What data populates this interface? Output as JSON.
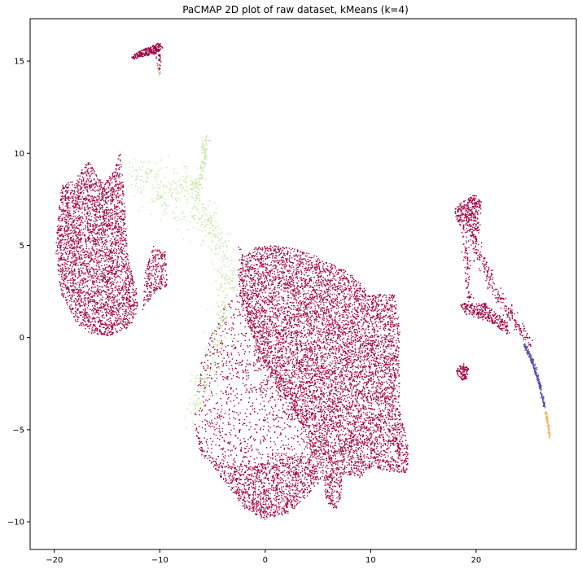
{
  "chart_data": {
    "type": "scatter",
    "title": "PaCMAP 2D plot of raw dataset, kMeans (k=4)",
    "xlabel": "",
    "ylabel": "",
    "xlim": [
      -22.3,
      29.5
    ],
    "ylim": [
      -11.5,
      17.3
    ],
    "x_ticks": [
      -20,
      -10,
      0,
      10,
      20
    ],
    "y_ticks": [
      -10,
      -5,
      0,
      5,
      10,
      15
    ],
    "grid": false,
    "legend": "none",
    "clusters": [
      {
        "color": "#9e0142",
        "role": "main"
      },
      {
        "color": "#c1e6a0",
        "role": "bridge"
      },
      {
        "color": "#5e4fa2",
        "role": "tail"
      },
      {
        "color": "#f9b35c",
        "role": "tail-end"
      }
    ],
    "regions": [
      {
        "cluster": 0,
        "shape": "poly",
        "count": 3200,
        "pts": [
          [
            -19.6,
            6.8
          ],
          [
            -19.3,
            8.3
          ],
          [
            -18.0,
            8.6
          ],
          [
            -16.8,
            9.6
          ],
          [
            -15.3,
            8.3
          ],
          [
            -14.2,
            9.2
          ],
          [
            -13.8,
            10.2
          ],
          [
            -13.4,
            8.0
          ],
          [
            -13.0,
            4.2
          ],
          [
            -12.2,
            2.6
          ],
          [
            -12.0,
            1.3
          ],
          [
            -13.0,
            0.5
          ],
          [
            -14.8,
            0.1
          ],
          [
            -16.5,
            0.2
          ],
          [
            -17.8,
            0.7
          ],
          [
            -19.3,
            2.3
          ],
          [
            -19.9,
            4.5
          ]
        ]
      },
      {
        "cluster": 0,
        "shape": "poly",
        "count": 250,
        "pts": [
          [
            -11.4,
            3.6
          ],
          [
            -10.6,
            5.0
          ],
          [
            -9.4,
            4.6
          ],
          [
            -9.3,
            2.8
          ],
          [
            -10.4,
            2.5
          ],
          [
            -11.6,
            1.5
          ]
        ]
      },
      {
        "cluster": 0,
        "shape": "poly",
        "count": 240,
        "pts": [
          [
            -12.7,
            15.2
          ],
          [
            -12.2,
            15.5
          ],
          [
            -10.0,
            16.0
          ],
          [
            -9.7,
            15.7
          ],
          [
            -10.4,
            15.4
          ],
          [
            -12.5,
            15.1
          ]
        ]
      },
      {
        "cluster": 0,
        "shape": "poly",
        "count": 30,
        "pts": [
          [
            -10.4,
            15.3
          ],
          [
            -9.8,
            15.4
          ],
          [
            -10.0,
            14.2
          ],
          [
            -10.4,
            14.8
          ]
        ]
      },
      {
        "cluster": 0,
        "shape": "poly",
        "count": 8500,
        "pts": [
          [
            -6.8,
            -4.3
          ],
          [
            -5.7,
            -6.3
          ],
          [
            -4.6,
            -7.3
          ],
          [
            -3.2,
            -8.3
          ],
          [
            -2.0,
            -9.3
          ],
          [
            0.0,
            -9.9
          ],
          [
            2.2,
            -9.6
          ],
          [
            4.5,
            -8.3
          ],
          [
            5.5,
            -7.6
          ],
          [
            5.8,
            -8.9
          ],
          [
            6.7,
            -9.4
          ],
          [
            7.3,
            -8.4
          ],
          [
            7.4,
            -7.4
          ],
          [
            9.0,
            -7.6
          ],
          [
            10.2,
            -7.0
          ],
          [
            11.6,
            -7.3
          ],
          [
            13.5,
            -7.4
          ],
          [
            13.6,
            -6.0
          ],
          [
            12.8,
            -4.0
          ],
          [
            12.7,
            -1.3
          ],
          [
            12.8,
            0.3
          ],
          [
            12.4,
            2.3
          ],
          [
            10.0,
            2.4
          ],
          [
            8.5,
            3.3
          ],
          [
            6.5,
            4.0
          ],
          [
            4.5,
            4.5
          ],
          [
            3.0,
            4.8
          ],
          [
            1.0,
            5.0
          ],
          [
            -1.0,
            4.9
          ],
          [
            -2.3,
            4.2
          ],
          [
            -2.6,
            3.0
          ],
          [
            -1.5,
            0.5
          ],
          [
            0.2,
            -1.8
          ],
          [
            1.5,
            -3.0
          ],
          [
            3.0,
            -4.3
          ],
          [
            4.0,
            -5.5
          ],
          [
            3.5,
            -6.2
          ],
          [
            2.0,
            -6.5
          ],
          [
            0.0,
            -6.8
          ],
          [
            -3.0,
            -7.0
          ],
          [
            -6.0,
            -6.5
          ],
          [
            -6.5,
            -5.5
          ]
        ]
      },
      {
        "cluster": 0,
        "shape": "poly",
        "count": 900,
        "pts": [
          [
            -6.8,
            -4.3
          ],
          [
            -6.0,
            -1.0
          ],
          [
            -4.0,
            1.5
          ],
          [
            -2.5,
            3.0
          ],
          [
            -1.0,
            1.0
          ],
          [
            1.0,
            -1.5
          ],
          [
            3.0,
            -3.5
          ],
          [
            4.0,
            -5.5
          ],
          [
            2.5,
            -6.5
          ],
          [
            0.0,
            -6.8
          ],
          [
            -3.0,
            -7.0
          ],
          [
            -6.0,
            -6.5
          ]
        ]
      },
      {
        "cluster": 0,
        "shape": "poly",
        "count": 350,
        "pts": [
          [
            17.8,
            7.2
          ],
          [
            18.5,
            7.3
          ],
          [
            19.8,
            7.8
          ],
          [
            20.5,
            7.5
          ],
          [
            20.4,
            6.0
          ],
          [
            20.0,
            5.2
          ],
          [
            19.2,
            5.6
          ],
          [
            18.2,
            6.3
          ]
        ]
      },
      {
        "cluster": 0,
        "shape": "poly",
        "count": 300,
        "pts": [
          [
            18.4,
            1.9
          ],
          [
            19.6,
            1.8
          ],
          [
            20.8,
            1.9
          ],
          [
            22.0,
            1.3
          ],
          [
            23.0,
            0.8
          ],
          [
            23.2,
            0.0
          ],
          [
            21.8,
            0.7
          ],
          [
            20.5,
            1.0
          ],
          [
            19.0,
            1.2
          ]
        ]
      },
      {
        "cluster": 0,
        "shape": "poly",
        "count": 110,
        "pts": [
          [
            18.2,
            -1.6
          ],
          [
            18.8,
            -1.4
          ],
          [
            19.3,
            -1.7
          ],
          [
            19.1,
            -2.3
          ],
          [
            18.5,
            -2.3
          ],
          [
            18.1,
            -1.9
          ]
        ]
      },
      {
        "cluster": 0,
        "shape": "line",
        "count": 240,
        "pts": [
          [
            19.8,
            5.2
          ],
          [
            21.0,
            3.5
          ],
          [
            22.3,
            2.0
          ],
          [
            24.0,
            0.6
          ],
          [
            25.0,
            -0.3
          ]
        ],
        "spread": 0.22
      },
      {
        "cluster": 0,
        "shape": "line",
        "count": 80,
        "pts": [
          [
            19.0,
            5.5
          ],
          [
            19.2,
            3.5
          ],
          [
            19.4,
            1.9
          ]
        ],
        "spread": 0.15
      },
      {
        "cluster": 0,
        "shape": "line",
        "count": 100,
        "pts": [
          [
            -2.5,
            4.9
          ],
          [
            -2.0,
            2.0
          ],
          [
            -0.8,
            -0.8
          ],
          [
            1.5,
            -3.0
          ],
          [
            3.5,
            -5.0
          ]
        ],
        "spread": 0.25
      },
      {
        "cluster": 1,
        "shape": "line",
        "count": 600,
        "pts": [
          [
            -12.6,
            9.0
          ],
          [
            -11.0,
            8.4
          ],
          [
            -9.5,
            8.1
          ],
          [
            -8.0,
            8.0
          ],
          [
            -7.2,
            8.2
          ],
          [
            -6.5,
            7.8
          ],
          [
            -5.3,
            6.0
          ],
          [
            -4.0,
            4.8
          ],
          [
            -3.5,
            3.0
          ],
          [
            -4.0,
            1.0
          ],
          [
            -5.0,
            -1.0
          ],
          [
            -6.0,
            -2.5
          ],
          [
            -6.8,
            -4.3
          ]
        ],
        "spread": 0.55
      },
      {
        "cluster": 1,
        "shape": "line",
        "count": 120,
        "pts": [
          [
            -5.6,
            11.0
          ],
          [
            -5.8,
            9.5
          ],
          [
            -6.2,
            8.5
          ],
          [
            -7.0,
            8.1
          ]
        ],
        "spread": 0.15
      },
      {
        "cluster": 1,
        "shape": "line",
        "count": 60,
        "pts": [
          [
            -11.0,
            7.6
          ],
          [
            -9.0,
            7.3
          ],
          [
            -7.5,
            6.3
          ],
          [
            -6.0,
            5.8
          ]
        ],
        "spread": 0.5
      },
      {
        "cluster": 1,
        "shape": "line",
        "count": 20,
        "pts": [
          [
            -10.2,
            14.9
          ],
          [
            -10.0,
            14.2
          ]
        ],
        "spread": 0.05
      },
      {
        "cluster": 2,
        "shape": "line",
        "count": 260,
        "pts": [
          [
            24.6,
            -0.4
          ],
          [
            25.4,
            -1.4
          ],
          [
            26.0,
            -2.5
          ],
          [
            26.5,
            -3.8
          ]
        ],
        "spread": 0.06
      },
      {
        "cluster": 3,
        "shape": "line",
        "count": 80,
        "pts": [
          [
            26.6,
            -4.0
          ],
          [
            26.8,
            -4.7
          ],
          [
            27.0,
            -5.4
          ]
        ],
        "spread": 0.05
      }
    ]
  }
}
